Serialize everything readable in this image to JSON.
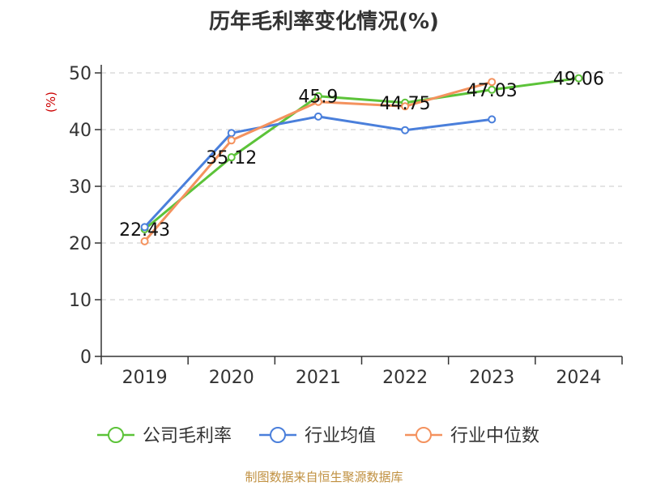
{
  "title": "历年毛利率变化情况(%)",
  "source": "制图数据来自恒生聚源数据库",
  "colors": {
    "title": "#333333",
    "axis": "#333333",
    "grid": "#c8c8c8",
    "ylabel": "#cc0000",
    "source": "#c09040"
  },
  "chart_data": {
    "type": "line",
    "title": "历年毛利率变化情况(%)",
    "xlabel": "",
    "ylabel": "(%)",
    "categories": [
      "2019",
      "2020",
      "2021",
      "2022",
      "2023",
      "2024"
    ],
    "ylim": [
      0,
      50
    ],
    "yticks": [
      0,
      10,
      20,
      30,
      40,
      50
    ],
    "grid": true,
    "legend_position": "bottom",
    "series": [
      {
        "name": "公司毛利率",
        "color": "#5cc339",
        "values": [
          22.43,
          35.12,
          45.9,
          44.75,
          47.03,
          49.06
        ],
        "labels": [
          "22.43",
          "35.12",
          "45.9",
          "44.75",
          "47.03",
          "49.06"
        ]
      },
      {
        "name": "行业均值",
        "color": "#4a7fdb",
        "values": [
          22.8,
          39.4,
          42.3,
          39.9,
          41.8,
          null
        ]
      },
      {
        "name": "行业中位数",
        "color": "#f4925e",
        "values": [
          20.3,
          38.1,
          44.9,
          44.1,
          48.4,
          null
        ]
      }
    ]
  }
}
